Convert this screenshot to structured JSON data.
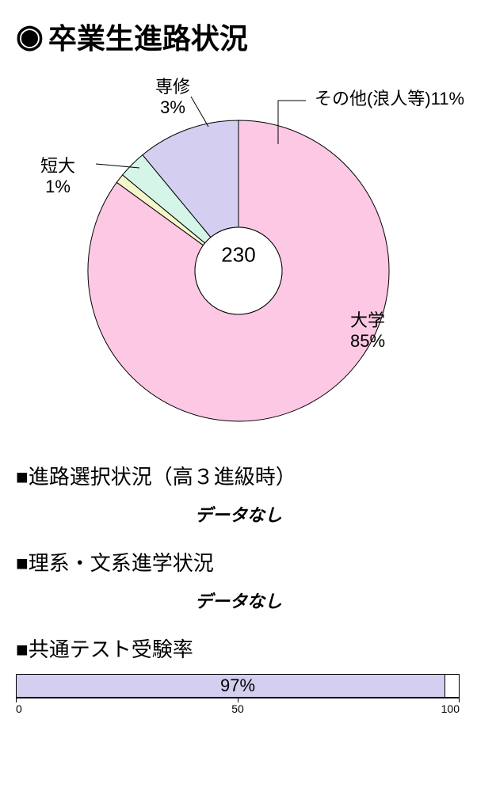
{
  "title": "卒業生進路状況",
  "donut": {
    "type": "donut",
    "total_label": "230",
    "outer_radius": 190,
    "inner_radius": 55,
    "stroke_color": "#000000",
    "stroke_width": 1,
    "start_angle_deg": 0,
    "slices": [
      {
        "name": "大学",
        "percent": 85,
        "color": "#fcc8e4",
        "label": "大学\n85%"
      },
      {
        "name": "短大",
        "percent": 1,
        "color": "#f6f6cc",
        "label": "短大\n1%"
      },
      {
        "name": "専修",
        "percent": 3,
        "color": "#d4f5e8",
        "label": "専修\n3%"
      },
      {
        "name": "その他(浪人等)",
        "percent": 11,
        "color": "#d4cff0",
        "label": "その他(浪人等)11%"
      }
    ],
    "callout_lines": [
      {
        "from": [
          330,
          100
        ],
        "via": [
          330,
          45
        ],
        "to": [
          365,
          45
        ]
      },
      {
        "from": [
          242,
          78
        ],
        "via": [
          220,
          40
        ],
        "to": [
          220,
          40
        ]
      },
      {
        "from": [
          155,
          130
        ],
        "via": [
          100,
          125
        ],
        "to": [
          100,
          125
        ]
      }
    ],
    "label_fontsize": 22
  },
  "sections": [
    {
      "heading": "■進路選択状況（高３進級時）",
      "nodata_text": "データなし"
    },
    {
      "heading": "■理系・文系進学状況",
      "nodata_text": "データなし"
    }
  ],
  "bar_section": {
    "heading": "■共通テスト受験率",
    "type": "bar",
    "value": 97,
    "max": 100,
    "fill_color": "#d4cff0",
    "border_color": "#000000",
    "bar_label": "97%",
    "xticks": [
      0,
      50,
      100
    ],
    "label_fontsize": 22,
    "tick_fontsize": 14
  }
}
